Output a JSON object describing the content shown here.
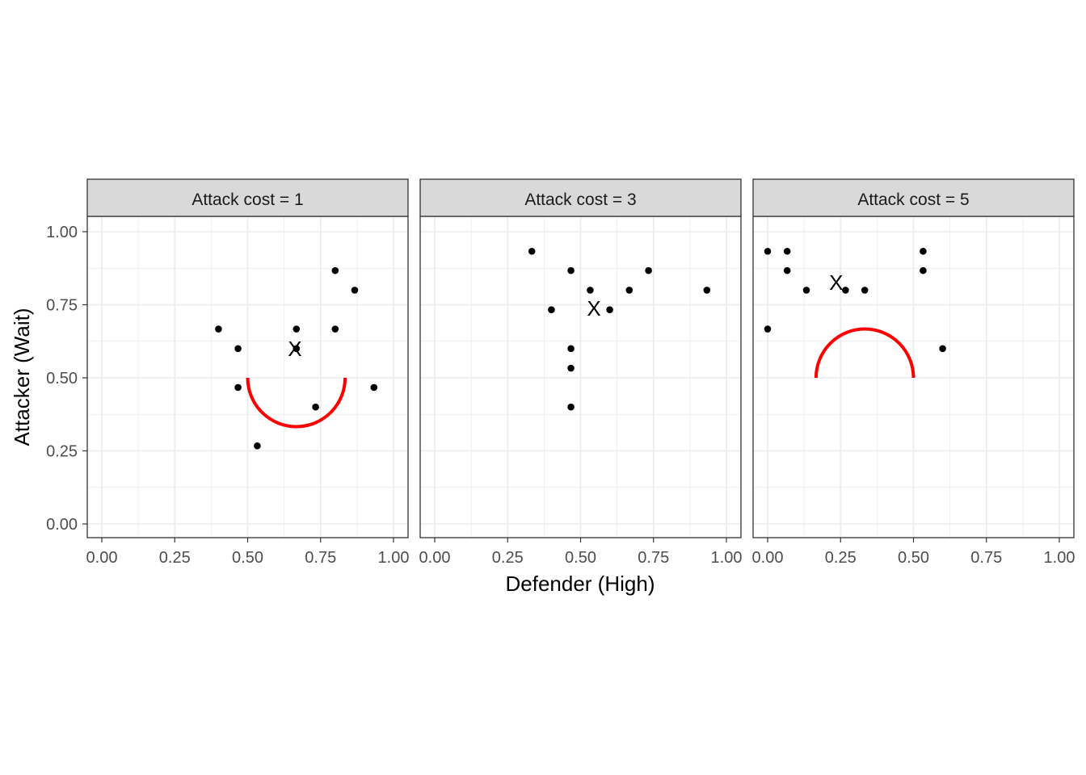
{
  "chart_data": {
    "type": "scatter",
    "xlabel": "Defender (High)",
    "ylabel": "Attacker (Wait)",
    "xlim": [
      0,
      1
    ],
    "ylim": [
      0,
      1
    ],
    "x_ticks": [
      "0.00",
      "0.25",
      "0.50",
      "0.75",
      "1.00"
    ],
    "y_ticks": [
      "0.00",
      "0.25",
      "0.50",
      "0.75",
      "1.00"
    ],
    "grid": true,
    "colors": {
      "points": "#000000",
      "arc": "#ff0000",
      "strip": "#d9d9d9"
    },
    "panels": [
      {
        "title": "Attack cost = 1",
        "points": [
          [
            0.4,
            0.667
          ],
          [
            0.467,
            0.6
          ],
          [
            0.467,
            0.467
          ],
          [
            0.533,
            0.267
          ],
          [
            0.667,
            0.667
          ],
          [
            0.667,
            0.6
          ],
          [
            0.733,
            0.4
          ],
          [
            0.8,
            0.867
          ],
          [
            0.8,
            0.667
          ],
          [
            0.867,
            0.8
          ],
          [
            0.933,
            0.467
          ]
        ],
        "marker": {
          "label": "X",
          "x": 0.662,
          "y": 0.6
        },
        "arc": {
          "cx": 0.667,
          "cy": 0.5,
          "r": 0.167,
          "half": "lower"
        }
      },
      {
        "title": "Attack cost = 3",
        "points": [
          [
            0.333,
            0.933
          ],
          [
            0.467,
            0.867
          ],
          [
            0.533,
            0.8
          ],
          [
            0.4,
            0.733
          ],
          [
            0.6,
            0.733
          ],
          [
            0.667,
            0.8
          ],
          [
            0.733,
            0.867
          ],
          [
            0.933,
            0.8
          ],
          [
            0.467,
            0.6
          ],
          [
            0.467,
            0.533
          ],
          [
            0.467,
            0.4
          ]
        ],
        "marker": {
          "label": "X",
          "x": 0.546,
          "y": 0.738
        }
      },
      {
        "title": "Attack cost = 5",
        "points": [
          [
            0,
            0.933
          ],
          [
            0.067,
            0.933
          ],
          [
            0.067,
            0.867
          ],
          [
            0.133,
            0.8
          ],
          [
            0.267,
            0.8
          ],
          [
            0.333,
            0.8
          ],
          [
            0.533,
            0.933
          ],
          [
            0.533,
            0.867
          ],
          [
            0,
            0.667
          ],
          [
            0.6,
            0.6
          ]
        ],
        "marker": {
          "label": "X",
          "x": 0.235,
          "y": 0.826
        },
        "arc": {
          "cx": 0.333,
          "cy": 0.5,
          "r": 0.167,
          "half": "upper"
        }
      }
    ]
  }
}
